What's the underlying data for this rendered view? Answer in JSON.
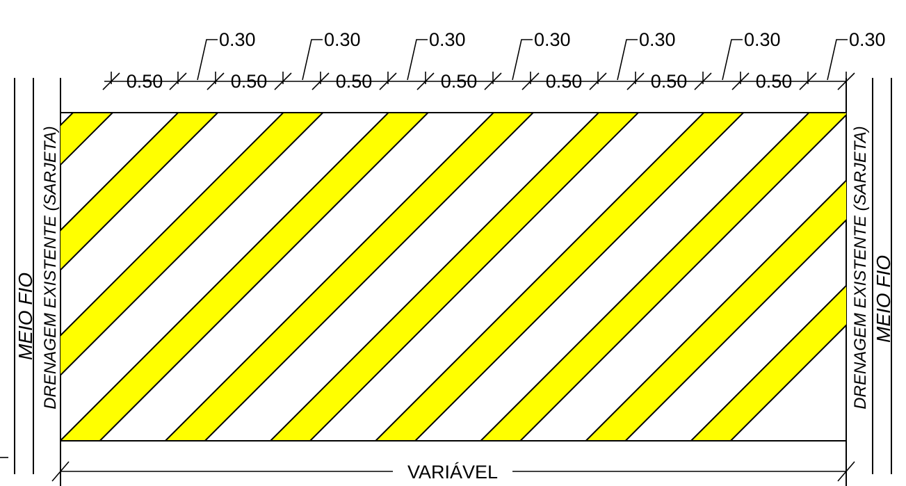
{
  "colors": {
    "stripe_fill": "#ffff00",
    "line": "#000000",
    "background": "#ffffff"
  },
  "dimensions": {
    "stripe_widths": [
      "0.50",
      "0.50",
      "0.50",
      "0.50",
      "0.50",
      "0.50",
      "0.50"
    ],
    "gap_widths": [
      "0.30",
      "0.30",
      "0.30",
      "0.30",
      "0.30",
      "0.30",
      "0.30"
    ],
    "total_width": "VARIÁVEL"
  },
  "labels": {
    "left_curb": "MEIO FIO",
    "left_drain": "DRENAGEM EXISTENTE (SARJETA)",
    "right_drain": "DRENAGEM EXISTENTE (SARJETA)",
    "right_curb": "MEIO FIO"
  }
}
